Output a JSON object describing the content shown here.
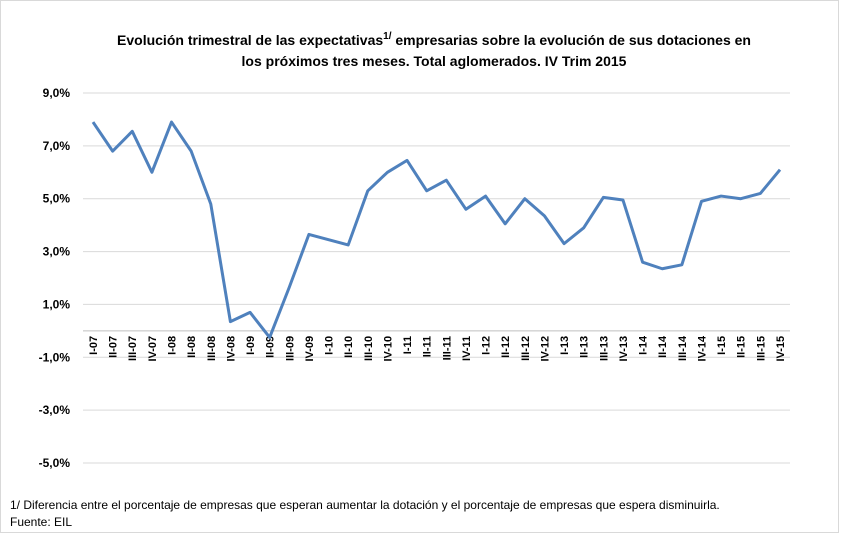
{
  "chart_data": {
    "type": "line",
    "title": {
      "line1_before": "Evolución trimestral de las expectativas",
      "superscript": "1/",
      "line1_after": " empresarias sobre la evolución de sus dotaciones en",
      "line2": "los próximos tres meses. Total aglomerados. IV Trim 2015"
    },
    "categories": [
      "I-07",
      "II-07",
      "III-07",
      "IV-07",
      "I-08",
      "II-08",
      "III-08",
      "IV-08",
      "I-09",
      "II-09",
      "III-09",
      "IV-09",
      "I-10",
      "II-10",
      "III-10",
      "IV-10",
      "I-11",
      "II-11",
      "III-11",
      "IV-11",
      "I-12",
      "II-12",
      "III-12",
      "IV-12",
      "I-13",
      "II-13",
      "III-13",
      "IV-13",
      "I-14",
      "II-14",
      "III-14",
      "IV-14",
      "I-15",
      "II-15",
      "III-15",
      "IV-15"
    ],
    "series": [
      {
        "color": "#4f81bd",
        "values": [
          7.9,
          6.8,
          7.55,
          6.0,
          7.9,
          6.8,
          4.8,
          0.35,
          0.7,
          -0.25,
          1.65,
          3.65,
          3.45,
          3.25,
          5.3,
          6.0,
          6.45,
          5.3,
          5.7,
          4.6,
          5.1,
          4.05,
          5.0,
          4.35,
          3.3,
          3.9,
          5.05,
          4.95,
          2.6,
          2.35,
          2.5,
          4.9,
          5.1,
          5.0,
          5.2,
          6.1
        ]
      }
    ],
    "ylim": [
      -5,
      9
    ],
    "yticks": [
      {
        "value": -5,
        "label": "-5,0%"
      },
      {
        "value": -3,
        "label": "-3,0%"
      },
      {
        "value": -1,
        "label": "-1,0%"
      },
      {
        "value": 1,
        "label": "1,0%"
      },
      {
        "value": 3,
        "label": "3,0%"
      },
      {
        "value": 5,
        "label": "5,0%"
      },
      {
        "value": 7,
        "label": "7,0%"
      },
      {
        "value": 9,
        "label": "9,0%"
      }
    ],
    "grid": true,
    "footnotes": [
      "1/ Diferencia entre el porcentaje de empresas que esperan aumentar la dotación y el porcentaje de empresas que espera disminuirla.",
      "Fuente: EIL"
    ]
  }
}
